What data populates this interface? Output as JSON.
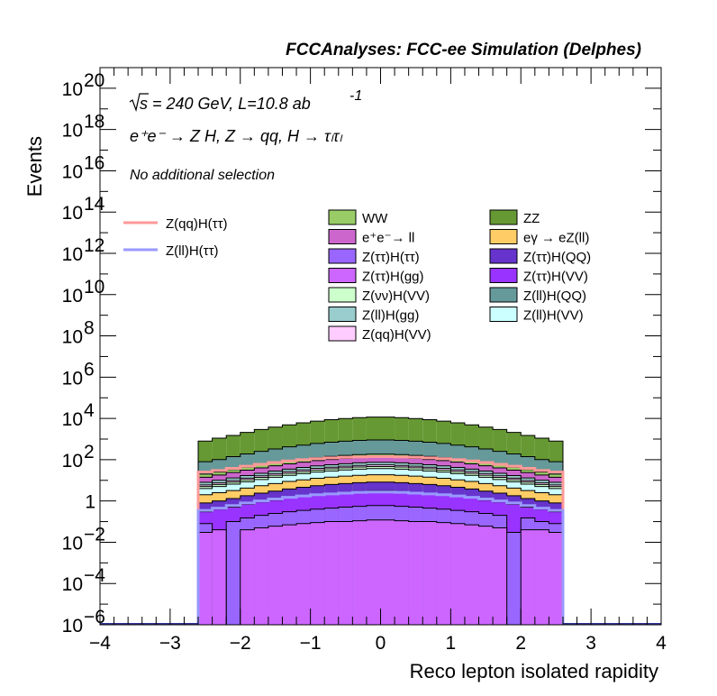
{
  "chart_data": {
    "type": "area",
    "title": "FCCAnalyses: FCC-ee Simulation (Delphes)",
    "xlabel": "Reco lepton isolated rapidity",
    "ylabel": "Events",
    "xlim": [
      -4,
      4
    ],
    "ylim": [
      1e-06,
      1e+21
    ],
    "yscale": "log",
    "grid": false,
    "x_ticks": [
      "−4",
      "−3",
      "−2",
      "−1",
      "0",
      "1",
      "2",
      "3",
      "4"
    ],
    "y_ticks": [
      {
        "base": "10",
        "exp": "−6"
      },
      {
        "base": "10",
        "exp": "−4"
      },
      {
        "base": "10",
        "exp": "−2"
      },
      {
        "base": "1",
        "exp": ""
      },
      {
        "base": "10",
        "exp": "2"
      },
      {
        "base": "10",
        "exp": "4"
      },
      {
        "base": "10",
        "exp": "6"
      },
      {
        "base": "10",
        "exp": "8"
      },
      {
        "base": "10",
        "exp": "10"
      },
      {
        "base": "10",
        "exp": "12"
      },
      {
        "base": "10",
        "exp": "14"
      },
      {
        "base": "10",
        "exp": "16"
      },
      {
        "base": "10",
        "exp": "18"
      },
      {
        "base": "10",
        "exp": "20"
      }
    ],
    "annotations": {
      "sqrt_s": "s = 240 GeV, L=10.8 ab",
      "lumi_exp": "-1",
      "process": "e⁺e⁻ → Z H, Z → qq, H → τₗτₗ",
      "selection": "No additional selection"
    },
    "bin_edges": [
      -2.6,
      -2.4,
      -2.2,
      -2.0,
      -1.8,
      -1.6,
      -1.4,
      -1.2,
      -1.0,
      -0.8,
      -0.6,
      -0.4,
      -0.2,
      0.0,
      0.2,
      0.4,
      0.6,
      0.8,
      1.0,
      1.2,
      1.4,
      1.6,
      1.8,
      2.0,
      2.2,
      2.4,
      2.6
    ],
    "stack_order": [
      "Z(ττ)H(gg)",
      "Z(ττ)H(ττ)",
      "Z(ττ)H(VV)",
      "Z(ττ)H(QQ)",
      "eγ → eZ(ll)",
      "Z(ll)H(VV)",
      "Z(νν)H(VV)",
      "Z(qq)H(VV)",
      "Z(ll)H(gg)",
      "e⁺e⁻→ ll",
      "WW",
      "Z(ll)H(QQ)",
      "ZZ"
    ],
    "stack_totals": [
      {
        "name": "Z(ττ)H(gg)",
        "color": "#cc66ff",
        "values": [
          0.03,
          0.04,
          1e-06,
          0.04,
          0.05,
          0.06,
          0.07,
          0.08,
          0.09,
          0.1,
          0.1,
          0.11,
          0.12,
          0.12,
          0.11,
          0.1,
          0.1,
          0.09,
          0.08,
          0.07,
          0.06,
          0.05,
          1e-06,
          0.04,
          0.04,
          0.03
        ]
      },
      {
        "name": "Z(ττ)H(ττ)",
        "color": "#9966ff",
        "values": [
          0.08,
          1e-06,
          0.1,
          0.15,
          0.2,
          0.25,
          0.3,
          0.35,
          0.4,
          0.45,
          0.5,
          0.55,
          0.6,
          0.6,
          0.55,
          0.5,
          0.45,
          0.4,
          0.35,
          0.3,
          0.25,
          0.2,
          0.03,
          0.15,
          0.1,
          0.08
        ]
      },
      {
        "name": "Z(ττ)H(VV)",
        "color": "#9933ff",
        "values": [
          0.3,
          0.4,
          0.5,
          0.7,
          0.9,
          1.1,
          1.4,
          1.7,
          2.0,
          2.3,
          2.6,
          2.9,
          3.1,
          3.1,
          2.9,
          2.6,
          2.3,
          2.0,
          1.7,
          1.4,
          1.1,
          0.9,
          0.7,
          0.5,
          0.4,
          0.3
        ]
      },
      {
        "name": "Z(ττ)H(QQ)",
        "color": "#6633cc",
        "values": [
          0.8,
          1.0,
          1.3,
          1.8,
          2.4,
          3.0,
          3.8,
          4.6,
          5.5,
          6.3,
          7.0,
          7.7,
          8.2,
          8.2,
          7.7,
          7.0,
          6.3,
          5.5,
          4.6,
          3.8,
          3.0,
          2.4,
          1.8,
          1.3,
          1.0,
          0.8
        ]
      },
      {
        "name": "eγ → eZ(ll)",
        "color": "#ffcc66",
        "values": [
          2.0,
          2.5,
          3.2,
          4.2,
          5.5,
          7.0,
          8.8,
          10.6,
          12.5,
          14.3,
          16.0,
          17.5,
          18.5,
          18.5,
          17.5,
          16.0,
          14.3,
          12.5,
          10.6,
          8.8,
          7.0,
          5.5,
          4.2,
          3.2,
          2.5,
          2.0
        ]
      },
      {
        "name": "Z(ll)H(VV)",
        "color": "#ccffff",
        "values": [
          4.0,
          5.0,
          6.5,
          8.5,
          11,
          14,
          17.5,
          21,
          25,
          28.5,
          32,
          35,
          37,
          37,
          35,
          32,
          28.5,
          25,
          21,
          17.5,
          14,
          11,
          8.5,
          6.5,
          5.0,
          4.0
        ]
      },
      {
        "name": "Z(νν)H(VV)",
        "color": "#ccffcc",
        "values": [
          5.0,
          6.3,
          8.2,
          10.7,
          13.9,
          17.7,
          22,
          26.5,
          31.5,
          36,
          40.3,
          44,
          46.6,
          46.6,
          44,
          40.3,
          36,
          31.5,
          26.5,
          22,
          17.7,
          13.9,
          10.7,
          8.2,
          6.3,
          5.0
        ]
      },
      {
        "name": "Z(qq)H(VV)",
        "color": "#ffccff",
        "values": [
          6.0,
          7.5,
          9.8,
          12.8,
          16.6,
          21.2,
          26.4,
          31.8,
          37.8,
          43.2,
          48.4,
          52.8,
          56,
          56,
          52.8,
          48.4,
          43.2,
          37.8,
          31.8,
          26.4,
          21.2,
          16.6,
          12.8,
          9.8,
          7.5,
          6.0
        ]
      },
      {
        "name": "Z(ll)H(gg)",
        "color": "#99cccc",
        "values": [
          8.0,
          10,
          13,
          17,
          22,
          28,
          35,
          42,
          50,
          57,
          64,
          70,
          74,
          74,
          70,
          64,
          57,
          50,
          42,
          35,
          28,
          22,
          17,
          13,
          10,
          8.0
        ]
      },
      {
        "name": "e⁺e⁻→ ll",
        "color": "#cc66cc",
        "values": [
          14,
          18,
          24,
          31,
          40,
          51,
          63,
          76,
          90,
          103,
          115,
          126,
          133,
          133,
          126,
          115,
          103,
          90,
          76,
          63,
          51,
          40,
          31,
          24,
          18,
          14
        ]
      },
      {
        "name": "WW",
        "color": "#99cc66",
        "values": [
          20,
          25,
          33,
          43,
          56,
          71,
          88,
          106,
          126,
          144,
          161,
          176,
          186,
          186,
          176,
          161,
          144,
          126,
          106,
          88,
          71,
          56,
          43,
          33,
          25,
          20
        ]
      },
      {
        "name": "Z(ll)H(QQ)",
        "color": "#669999",
        "values": [
          80,
          102,
          140,
          190,
          255,
          330,
          420,
          510,
          610,
          700,
          790,
          860,
          910,
          910,
          860,
          790,
          700,
          610,
          510,
          420,
          330,
          255,
          190,
          140,
          102,
          80
        ]
      },
      {
        "name": "ZZ",
        "color": "#669933",
        "values": [
          800,
          1100,
          1500,
          2100,
          2900,
          3800,
          4900,
          6100,
          7400,
          8700,
          9900,
          10900,
          11600,
          11600,
          10900,
          9900,
          8700,
          7400,
          6100,
          4900,
          3800,
          2900,
          2100,
          1500,
          1100,
          800
        ]
      }
    ],
    "signals": [
      {
        "name": "Z(qq)H(ττ)",
        "color": "#ff9999",
        "values": [
          25,
          30,
          38,
          48,
          60,
          73,
          87,
          100,
          112,
          122,
          130,
          136,
          140,
          140,
          136,
          130,
          122,
          112,
          100,
          87,
          73,
          60,
          48,
          38,
          30,
          25
        ]
      },
      {
        "name": "Z(ll)H(ττ)",
        "color": "#9999ff",
        "values": [
          0.35,
          0.45,
          0.6,
          0.8,
          1.0,
          1.25,
          1.5,
          1.75,
          2.0,
          2.2,
          2.4,
          2.6,
          2.7,
          2.7,
          2.6,
          2.4,
          2.2,
          2.0,
          1.75,
          1.5,
          1.25,
          1.0,
          0.8,
          0.6,
          0.45,
          0.35
        ]
      }
    ],
    "legend_columns": [
      [
        "Z(qq)H(ττ)",
        "Z(ll)H(ττ)"
      ],
      [
        "WW",
        "e⁺e⁻→ ll",
        "Z(ττ)H(ττ)",
        "Z(ττ)H(gg)",
        "Z(νν)H(VV)",
        "Z(ll)H(gg)",
        "Z(qq)H(VV)"
      ],
      [
        "ZZ",
        "eγ → eZ(ll)",
        "Z(ττ)H(QQ)",
        "Z(ττ)H(VV)",
        "Z(ll)H(QQ)",
        "Z(ll)H(VV)"
      ]
    ]
  }
}
